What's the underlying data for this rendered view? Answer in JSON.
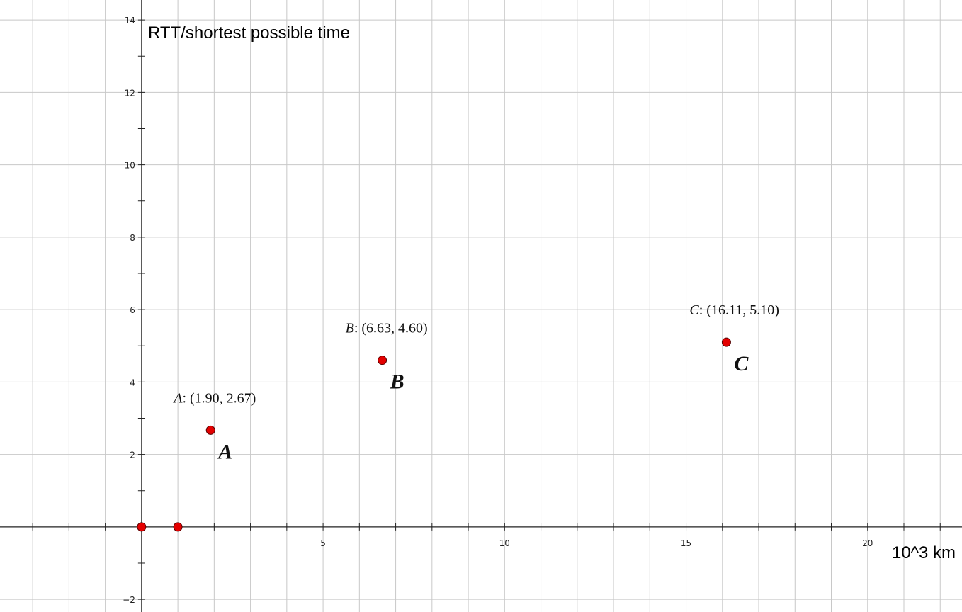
{
  "chart_data": {
    "type": "scatter",
    "title": "",
    "xlabel": "10^3 km",
    "ylabel": "RTT/shortest possible time",
    "xlim": [
      -3.9,
      22.6
    ],
    "ylim": [
      -2.35,
      14.55
    ],
    "grid": true,
    "x_major_ticks": [
      5,
      10,
      15,
      20
    ],
    "y_major_ticks": [
      -2,
      2,
      4,
      6,
      8,
      10,
      12,
      14
    ],
    "points": [
      {
        "x": 0,
        "y": 0
      },
      {
        "x": 1,
        "y": 0
      },
      {
        "x": 1.9,
        "y": 2.67,
        "name": "A",
        "coord_label": "(1.90, 2.67)"
      },
      {
        "x": 6.63,
        "y": 4.6,
        "name": "B",
        "coord_label": "(6.63, 4.60)"
      },
      {
        "x": 16.11,
        "y": 5.1,
        "name": "C",
        "coord_label": "(16.11, 5.10)"
      }
    ],
    "point_color": "#e30000",
    "grid_color": "#c8c8c8",
    "axis_color": "#222222"
  }
}
